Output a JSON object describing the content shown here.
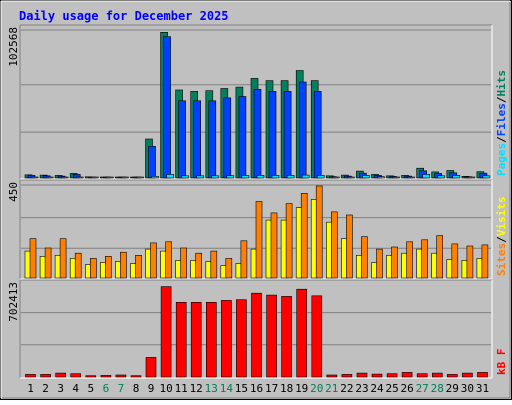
{
  "title": "Daily usage for December 2025",
  "colors": {
    "background": "#c0c0c0",
    "title": "#0000ff",
    "grid": "#808080",
    "hits": "#00805c",
    "files": "#0040ff",
    "pages": "#00e0ff",
    "visits": "#ffff00",
    "sites": "#ff8000",
    "kbytes": "#ff0000",
    "day_weekday": "#000000",
    "day_weekend": "#00805c"
  },
  "panels": {
    "top": {
      "max_label": "102568",
      "legend": [
        {
          "text": "Pages",
          "color": "#00e0ff"
        },
        {
          "text": "/",
          "color": "#000000"
        },
        {
          "text": "Files",
          "color": "#0040ff"
        },
        {
          "text": "/",
          "color": "#000000"
        },
        {
          "text": "Hits",
          "color": "#00805c"
        }
      ]
    },
    "middle": {
      "max_label": "450",
      "legend": [
        {
          "text": "Sites",
          "color": "#ff8000"
        },
        {
          "text": "/",
          "color": "#000000"
        },
        {
          "text": "Visits",
          "color": "#ffff00"
        }
      ]
    },
    "bottom": {
      "max_label": "702413",
      "legend": [
        {
          "text": "kB F",
          "color": "#ff0000"
        }
      ]
    }
  },
  "chart_data": {
    "type": "bar",
    "title": "Daily usage for December 2025",
    "categories": [
      "1",
      "2",
      "3",
      "4",
      "5",
      "6",
      "7",
      "8",
      "9",
      "10",
      "11",
      "12",
      "13",
      "14",
      "15",
      "16",
      "17",
      "18",
      "19",
      "20",
      "21",
      "22",
      "23",
      "24",
      "25",
      "26",
      "27",
      "28",
      "29",
      "30",
      "31"
    ],
    "weekend_days": [
      "6",
      "7",
      "13",
      "14",
      "20",
      "21",
      "27",
      "28"
    ],
    "panels": [
      {
        "name": "top",
        "ylim": [
          0,
          102568
        ],
        "series": [
          {
            "name": "Hits",
            "values": [
              2200,
              2000,
              1800,
              3200,
              800,
              500,
              400,
              600,
              27000,
              101000,
              61000,
              60000,
              60500,
              62000,
              63000,
              69000,
              67500,
              67500,
              74500,
              67500,
              1500,
              2000,
              4800,
              2500,
              1500,
              1800,
              6800,
              4200,
              5200,
              1200,
              4400
            ]
          },
          {
            "name": "Files",
            "values": [
              1800,
              1500,
              1300,
              2500,
              600,
              400,
              300,
              450,
              22000,
              98000,
              53500,
              53500,
              53500,
              55500,
              56500,
              61500,
              60000,
              60000,
              66500,
              60000,
              1000,
              1300,
              3300,
              1800,
              1100,
              1300,
              5000,
              3100,
              3600,
              900,
              3300
            ]
          },
          {
            "name": "Pages",
            "values": [
              600,
              500,
              400,
              700,
              300,
              200,
              150,
              200,
              1200,
              2500,
              1500,
              1500,
              1500,
              1600,
              1700,
              1800,
              1800,
              1800,
              2000,
              1800,
              500,
              700,
              1800,
              900,
              500,
              600,
              2500,
              1500,
              1800,
              400,
              1500
            ]
          }
        ]
      },
      {
        "name": "middle",
        "ylim": [
          0,
          450
        ],
        "series": [
          {
            "name": "Visits",
            "values": [
              130,
              105,
              110,
              95,
              65,
              75,
              80,
              70,
              140,
              130,
              85,
              85,
              80,
              60,
              70,
              140,
              280,
              280,
              340,
              380,
              270,
              190,
              110,
              75,
              110,
              120,
              140,
              120,
              90,
              85,
              95
            ]
          },
          {
            "name": "Sites",
            "values": [
              190,
              145,
              190,
              120,
              95,
              105,
              125,
              110,
              170,
              175,
              145,
              120,
              130,
              95,
              180,
              370,
              315,
              360,
              410,
              445,
              320,
              305,
              200,
              140,
              150,
              175,
              185,
              205,
              165,
              155,
              160
            ]
          }
        ]
      },
      {
        "name": "bottom",
        "ylim": [
          0,
          702413
        ],
        "series": [
          {
            "name": "kB F",
            "values": [
              20000,
              20000,
              30000,
              25000,
              10000,
              12000,
              15000,
              10000,
              150000,
              690000,
              570000,
              570000,
              570000,
              585000,
              590000,
              640000,
              625000,
              615000,
              670000,
              620000,
              15000,
              20000,
              30000,
              22000,
              25000,
              35000,
              25000,
              30000,
              20000,
              30000,
              35000
            ]
          }
        ]
      }
    ]
  }
}
